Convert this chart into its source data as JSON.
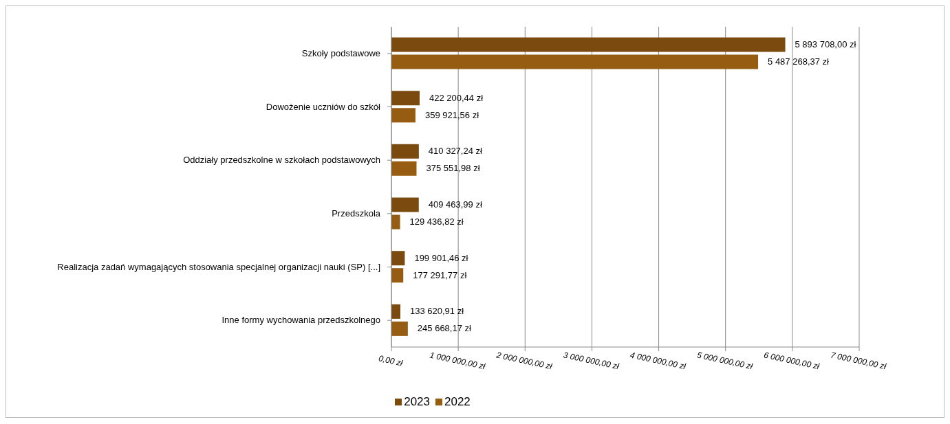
{
  "chart_data": {
    "type": "bar",
    "orientation": "horizontal",
    "categories": [
      "Szkoły podstawowe",
      "Dowożenie uczniów do szkół",
      "Oddziały przedszkolne w szkołach podstawowych",
      "Przedszkola",
      "Realizacja zadań wymagających stosowania specjalnej organizacji nauki (SP) [...]",
      "Inne formy wychowania przedszkolnego"
    ],
    "series": [
      {
        "name": "2023",
        "color": "#7b4a0e",
        "values": [
          5893708.0,
          422200.44,
          410327.24,
          409463.99,
          199901.46,
          133620.91
        ],
        "value_labels": [
          "5 893 708,00 zł",
          "422 200,44 zł",
          "410 327,24 zł",
          "409 463,99 zł",
          "199 901,46 zł",
          "133 620,91 zł"
        ]
      },
      {
        "name": "2022",
        "color": "#965c12",
        "values": [
          5487268.37,
          359921.56,
          375551.98,
          129436.82,
          177291.77,
          245668.17
        ],
        "value_labels": [
          "5 487 268,37 zł",
          "359 921,56 zł",
          "375 551,98 zł",
          "129 436,82 zł",
          "177 291,77 zł",
          "245 668,17 zł"
        ]
      }
    ],
    "xlim": [
      0,
      7000000
    ],
    "xticks": [
      {
        "value": 0,
        "label": "0,00 zł"
      },
      {
        "value": 1000000,
        "label": "1 000 000,00 zł"
      },
      {
        "value": 2000000,
        "label": "2 000 000,00 zł"
      },
      {
        "value": 3000000,
        "label": "3 000 000,00 zł"
      },
      {
        "value": 4000000,
        "label": "4 000 000,00 zł"
      },
      {
        "value": 5000000,
        "label": "5 000 000,00 zł"
      },
      {
        "value": 6000000,
        "label": "6 000 000,00 zł"
      },
      {
        "value": 7000000,
        "label": "7 000 000,00 zł"
      }
    ],
    "grid": "x",
    "legend": "bottom"
  }
}
